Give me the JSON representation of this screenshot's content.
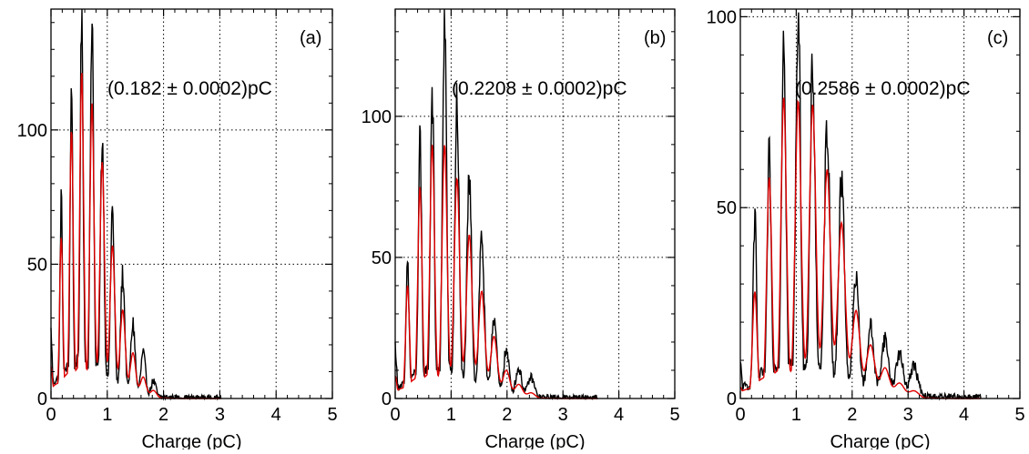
{
  "chart_data": [
    {
      "type": "line",
      "panel_label": "(a)",
      "annotation": "(0.182 ± 0.0002)pC",
      "xlabel": "Charge (pC)",
      "ylabel": "",
      "xlim": [
        0,
        5
      ],
      "ylim": [
        0,
        145
      ],
      "xticks": [
        0,
        1,
        2,
        3,
        4,
        5
      ],
      "yticks": [
        0,
        50,
        100
      ],
      "grid": true,
      "gain": 0.182,
      "peaks": [
        {
          "x": 0.0,
          "data": 24,
          "fit": 12
        },
        {
          "x": 0.182,
          "data": 71,
          "fit": 60
        },
        {
          "x": 0.364,
          "data": 111,
          "fit": 100
        },
        {
          "x": 0.546,
          "data": 138,
          "fit": 122
        },
        {
          "x": 0.728,
          "data": 141,
          "fit": 110
        },
        {
          "x": 0.91,
          "data": 95,
          "fit": 88
        },
        {
          "x": 1.092,
          "data": 68,
          "fit": 57
        },
        {
          "x": 1.274,
          "data": 45,
          "fit": 33
        },
        {
          "x": 1.456,
          "data": 27,
          "fit": 17
        },
        {
          "x": 1.638,
          "data": 16,
          "fit": 8
        },
        {
          "x": 1.82,
          "data": 6,
          "fit": 3
        }
      ],
      "series": [
        {
          "name": "",
          "color": "#000000",
          "role": "data"
        },
        {
          "name": "",
          "color": "#e00000",
          "role": "fit"
        }
      ]
    },
    {
      "type": "line",
      "panel_label": "(b)",
      "annotation": "(0.2208 ± 0.0002)pC",
      "xlabel": "Charge (pC)",
      "ylabel": "",
      "xlim": [
        0,
        5
      ],
      "ylim": [
        0,
        138
      ],
      "xticks": [
        0,
        1,
        2,
        3,
        4,
        5
      ],
      "yticks": [
        0,
        50,
        100
      ],
      "grid": true,
      "gain": 0.2208,
      "peaks": [
        {
          "x": 0.0,
          "data": 18,
          "fit": 8
        },
        {
          "x": 0.221,
          "data": 47,
          "fit": 40
        },
        {
          "x": 0.442,
          "data": 87,
          "fit": 75
        },
        {
          "x": 0.662,
          "data": 107,
          "fit": 90
        },
        {
          "x": 0.883,
          "data": 132,
          "fit": 90
        },
        {
          "x": 1.104,
          "data": 101,
          "fit": 78
        },
        {
          "x": 1.325,
          "data": 75,
          "fit": 58
        },
        {
          "x": 1.546,
          "data": 56,
          "fit": 38
        },
        {
          "x": 1.766,
          "data": 28,
          "fit": 22
        },
        {
          "x": 1.987,
          "data": 16,
          "fit": 10
        },
        {
          "x": 2.208,
          "data": 10,
          "fit": 5
        },
        {
          "x": 2.429,
          "data": 7,
          "fit": 2
        }
      ],
      "series": [
        {
          "name": "",
          "color": "#000000",
          "role": "data"
        },
        {
          "name": "",
          "color": "#e00000",
          "role": "fit"
        }
      ]
    },
    {
      "type": "line",
      "panel_label": "(c)",
      "annotation": "(0.2586 ± 0.0002)pC",
      "xlabel": "Charge (pC)",
      "ylabel": "",
      "xlim": [
        0,
        5
      ],
      "ylim": [
        0,
        102
      ],
      "xticks": [
        0,
        1,
        2,
        3,
        4,
        5
      ],
      "yticks": [
        0,
        50,
        100
      ],
      "grid": true,
      "gain": 0.2586,
      "peaks": [
        {
          "x": 0.0,
          "data": 8,
          "fit": 3
        },
        {
          "x": 0.259,
          "data": 45,
          "fit": 28
        },
        {
          "x": 0.517,
          "data": 61,
          "fit": 58
        },
        {
          "x": 0.776,
          "data": 94,
          "fit": 79
        },
        {
          "x": 1.034,
          "data": 99,
          "fit": 78
        },
        {
          "x": 1.293,
          "data": 84,
          "fit": 77
        },
        {
          "x": 1.552,
          "data": 70,
          "fit": 60
        },
        {
          "x": 1.81,
          "data": 56,
          "fit": 46
        },
        {
          "x": 2.069,
          "data": 30,
          "fit": 23
        },
        {
          "x": 2.328,
          "data": 18,
          "fit": 14
        },
        {
          "x": 2.586,
          "data": 15,
          "fit": 8
        },
        {
          "x": 2.845,
          "data": 11,
          "fit": 4
        },
        {
          "x": 3.103,
          "data": 8,
          "fit": 2
        }
      ],
      "series": [
        {
          "name": "",
          "color": "#000000",
          "role": "data"
        },
        {
          "name": "",
          "color": "#e00000",
          "role": "fit"
        }
      ]
    }
  ]
}
